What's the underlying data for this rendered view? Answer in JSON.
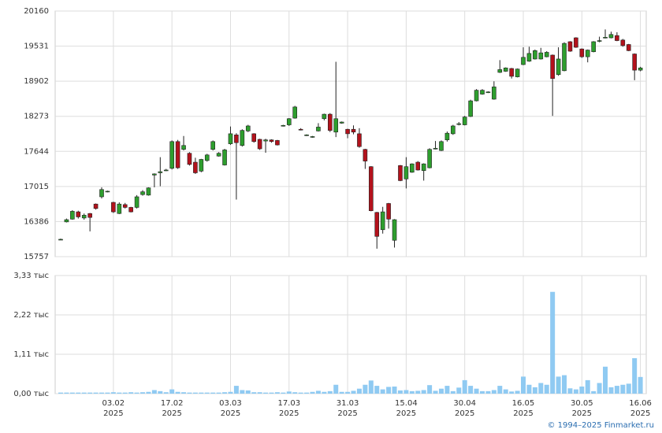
{
  "chart_data": [
    {
      "type": "candlestick",
      "categories": [
        null,
        null,
        null,
        null,
        null,
        null,
        null,
        null,
        null,
        "03.02\n2025",
        null,
        null,
        null,
        null,
        null,
        null,
        null,
        null,
        null,
        "17.02\n2025",
        null,
        null,
        null,
        null,
        null,
        null,
        null,
        null,
        null,
        "03.03\n2025",
        null,
        null,
        null,
        null,
        null,
        null,
        null,
        null,
        null,
        "17.03\n2025",
        null,
        null,
        null,
        null,
        null,
        null,
        null,
        null,
        null,
        "31.03\n2025",
        null,
        null,
        null,
        null,
        null,
        null,
        null,
        null,
        null,
        "15.04\n2025",
        null,
        null,
        null,
        null,
        null,
        null,
        null,
        null,
        null,
        "30.04\n2025",
        null,
        null,
        null,
        null,
        null,
        null,
        null,
        null,
        null,
        "16.05\n2025",
        null,
        null,
        null,
        null,
        null,
        null,
        null,
        null,
        null,
        "30.05\n2025",
        null,
        null,
        null,
        null,
        null,
        null,
        null,
        null,
        null,
        "16.06\n2025"
      ],
      "open": [
        16068,
        16380,
        16430,
        16560,
        16450,
        16530,
        16700,
        16830,
        16920,
        16730,
        16530,
        16690,
        16640,
        16640,
        16870,
        16860,
        17220,
        17260,
        17300,
        17340,
        17820,
        17680,
        17610,
        17450,
        17290,
        17480,
        17680,
        17560,
        17400,
        17780,
        17940,
        17750,
        18010,
        17960,
        17860,
        17830,
        17850,
        17840,
        18100,
        18120,
        18240,
        18040,
        17930,
        17900,
        18010,
        18230,
        18310,
        17990,
        18150,
        18040,
        18040,
        17960,
        17680,
        17370,
        16550,
        16240,
        16710,
        16050,
        17390,
        17150,
        17270,
        17450,
        17300,
        17350,
        17690,
        17660,
        17850,
        17960,
        18130,
        18120,
        18270,
        18550,
        18670,
        18700,
        18580,
        19060,
        19080,
        19130,
        18980,
        19200,
        19260,
        19300,
        19300,
        19340,
        19370,
        19020,
        19090,
        19610,
        19680,
        19480,
        19340,
        19430,
        19620,
        19680,
        19680,
        19720,
        19640,
        19560,
        19390,
        19100
      ],
      "high": [
        16080,
        16440,
        16590,
        16580,
        16530,
        16540,
        16710,
        17000,
        16940,
        16740,
        16730,
        16720,
        16650,
        16860,
        16950,
        17000,
        17250,
        17540,
        17330,
        17840,
        17850,
        17920,
        17630,
        17530,
        17510,
        17600,
        17840,
        17630,
        17690,
        18090,
        17970,
        18040,
        18120,
        17970,
        17870,
        17870,
        17860,
        17850,
        18120,
        18240,
        18460,
        18060,
        17950,
        17920,
        18150,
        18320,
        18330,
        19250,
        18180,
        18050,
        18110,
        18060,
        17690,
        17380,
        16560,
        16650,
        16720,
        16430,
        17400,
        17540,
        17430,
        17470,
        17430,
        17700,
        17830,
        17840,
        18000,
        18120,
        18170,
        18280,
        18570,
        18760,
        18760,
        18720,
        18900,
        19280,
        19150,
        19140,
        19130,
        19510,
        19520,
        19470,
        19500,
        19440,
        19380,
        19510,
        19600,
        19620,
        19690,
        19490,
        19470,
        19620,
        19700,
        19830,
        19790,
        19780,
        19660,
        19570,
        19400,
        19160
      ],
      "low": [
        16060,
        16370,
        16420,
        16440,
        16420,
        16210,
        16600,
        16800,
        16910,
        16540,
        16520,
        16620,
        16550,
        16620,
        16850,
        16850,
        17000,
        17020,
        17290,
        17320,
        17330,
        17660,
        17390,
        17240,
        17270,
        17460,
        17660,
        17550,
        17390,
        17760,
        16780,
        17730,
        17990,
        17800,
        17670,
        17620,
        17800,
        17750,
        18090,
        18100,
        18230,
        18020,
        17920,
        17890,
        18000,
        18200,
        17990,
        17900,
        18140,
        17880,
        17950,
        17710,
        17330,
        16570,
        15900,
        16170,
        16260,
        15920,
        17110,
        16980,
        17260,
        17300,
        17120,
        17340,
        17680,
        17650,
        17820,
        17940,
        18110,
        18110,
        18260,
        18540,
        18660,
        18690,
        18570,
        19050,
        19070,
        18950,
        18970,
        19190,
        19250,
        19290,
        19290,
        19330,
        18280,
        19000,
        19080,
        19430,
        19500,
        19320,
        19240,
        19420,
        19600,
        19670,
        19670,
        19620,
        19520,
        19440,
        18920,
        19080
      ],
      "close": [
        16068,
        16420,
        16570,
        16470,
        16500,
        16460,
        16620,
        16960,
        16930,
        16560,
        16700,
        16640,
        16560,
        16830,
        16920,
        16990,
        17240,
        17280,
        17310,
        17820,
        17350,
        17750,
        17410,
        17260,
        17500,
        17580,
        17820,
        17610,
        17670,
        17960,
        17800,
        18020,
        18100,
        17820,
        17690,
        17850,
        17820,
        17760,
        18110,
        18230,
        18440,
        18030,
        17940,
        17910,
        18080,
        18310,
        18020,
        18230,
        18170,
        17960,
        17990,
        17730,
        17470,
        16580,
        16120,
        16560,
        16430,
        16420,
        17120,
        17370,
        17420,
        17310,
        17420,
        17680,
        17700,
        17820,
        17970,
        18100,
        18140,
        18260,
        18550,
        18740,
        18740,
        18710,
        18800,
        19110,
        19140,
        18990,
        19120,
        19330,
        19400,
        19450,
        19410,
        19420,
        18950,
        19300,
        19580,
        19440,
        19510,
        19340,
        19460,
        19610,
        19630,
        19690,
        19740,
        19630,
        19540,
        19450,
        19100,
        19140
      ],
      "color_up": "#2e9e2e",
      "color_down": "#b3121c",
      "ylim": [
        15757,
        20160
      ],
      "yticks": [
        15757,
        16386,
        17015,
        17644,
        18273,
        18902,
        19531,
        20160
      ],
      "grid": true
    },
    {
      "type": "bar",
      "values": [
        0.03,
        0.03,
        0.03,
        0.03,
        0.03,
        0.03,
        0.03,
        0.03,
        0.03,
        0.04,
        0.03,
        0.03,
        0.04,
        0.03,
        0.04,
        0.05,
        0.1,
        0.07,
        0.04,
        0.12,
        0.05,
        0.04,
        0.03,
        0.03,
        0.03,
        0.03,
        0.03,
        0.03,
        0.04,
        0.05,
        0.22,
        0.1,
        0.09,
        0.04,
        0.04,
        0.03,
        0.03,
        0.04,
        0.03,
        0.06,
        0.04,
        0.03,
        0.03,
        0.05,
        0.08,
        0.05,
        0.07,
        0.25,
        0.05,
        0.05,
        0.08,
        0.14,
        0.25,
        0.37,
        0.22,
        0.12,
        0.19,
        0.2,
        0.09,
        0.1,
        0.07,
        0.08,
        0.1,
        0.24,
        0.08,
        0.14,
        0.22,
        0.07,
        0.17,
        0.38,
        0.22,
        0.14,
        0.07,
        0.07,
        0.1,
        0.22,
        0.12,
        0.06,
        0.08,
        0.48,
        0.25,
        0.18,
        0.3,
        0.25,
        2.87,
        0.48,
        0.52,
        0.15,
        0.12,
        0.2,
        0.38,
        0.07,
        0.3,
        0.76,
        0.18,
        0.22,
        0.25,
        0.28,
        1.0,
        0.47
      ],
      "color": "#8fcaf2",
      "ylim": [
        0,
        3.33
      ],
      "yticks": [
        {
          "value": 0,
          "label": "0,00 тыс"
        },
        {
          "value": 1.11,
          "label": "1,11 тыс"
        },
        {
          "value": 2.22,
          "label": "2,22 тыс"
        },
        {
          "value": 3.33,
          "label": "3,33 тыс"
        }
      ],
      "grid": true
    }
  ],
  "footer": "© 1994–2025 Finmarket.ru"
}
